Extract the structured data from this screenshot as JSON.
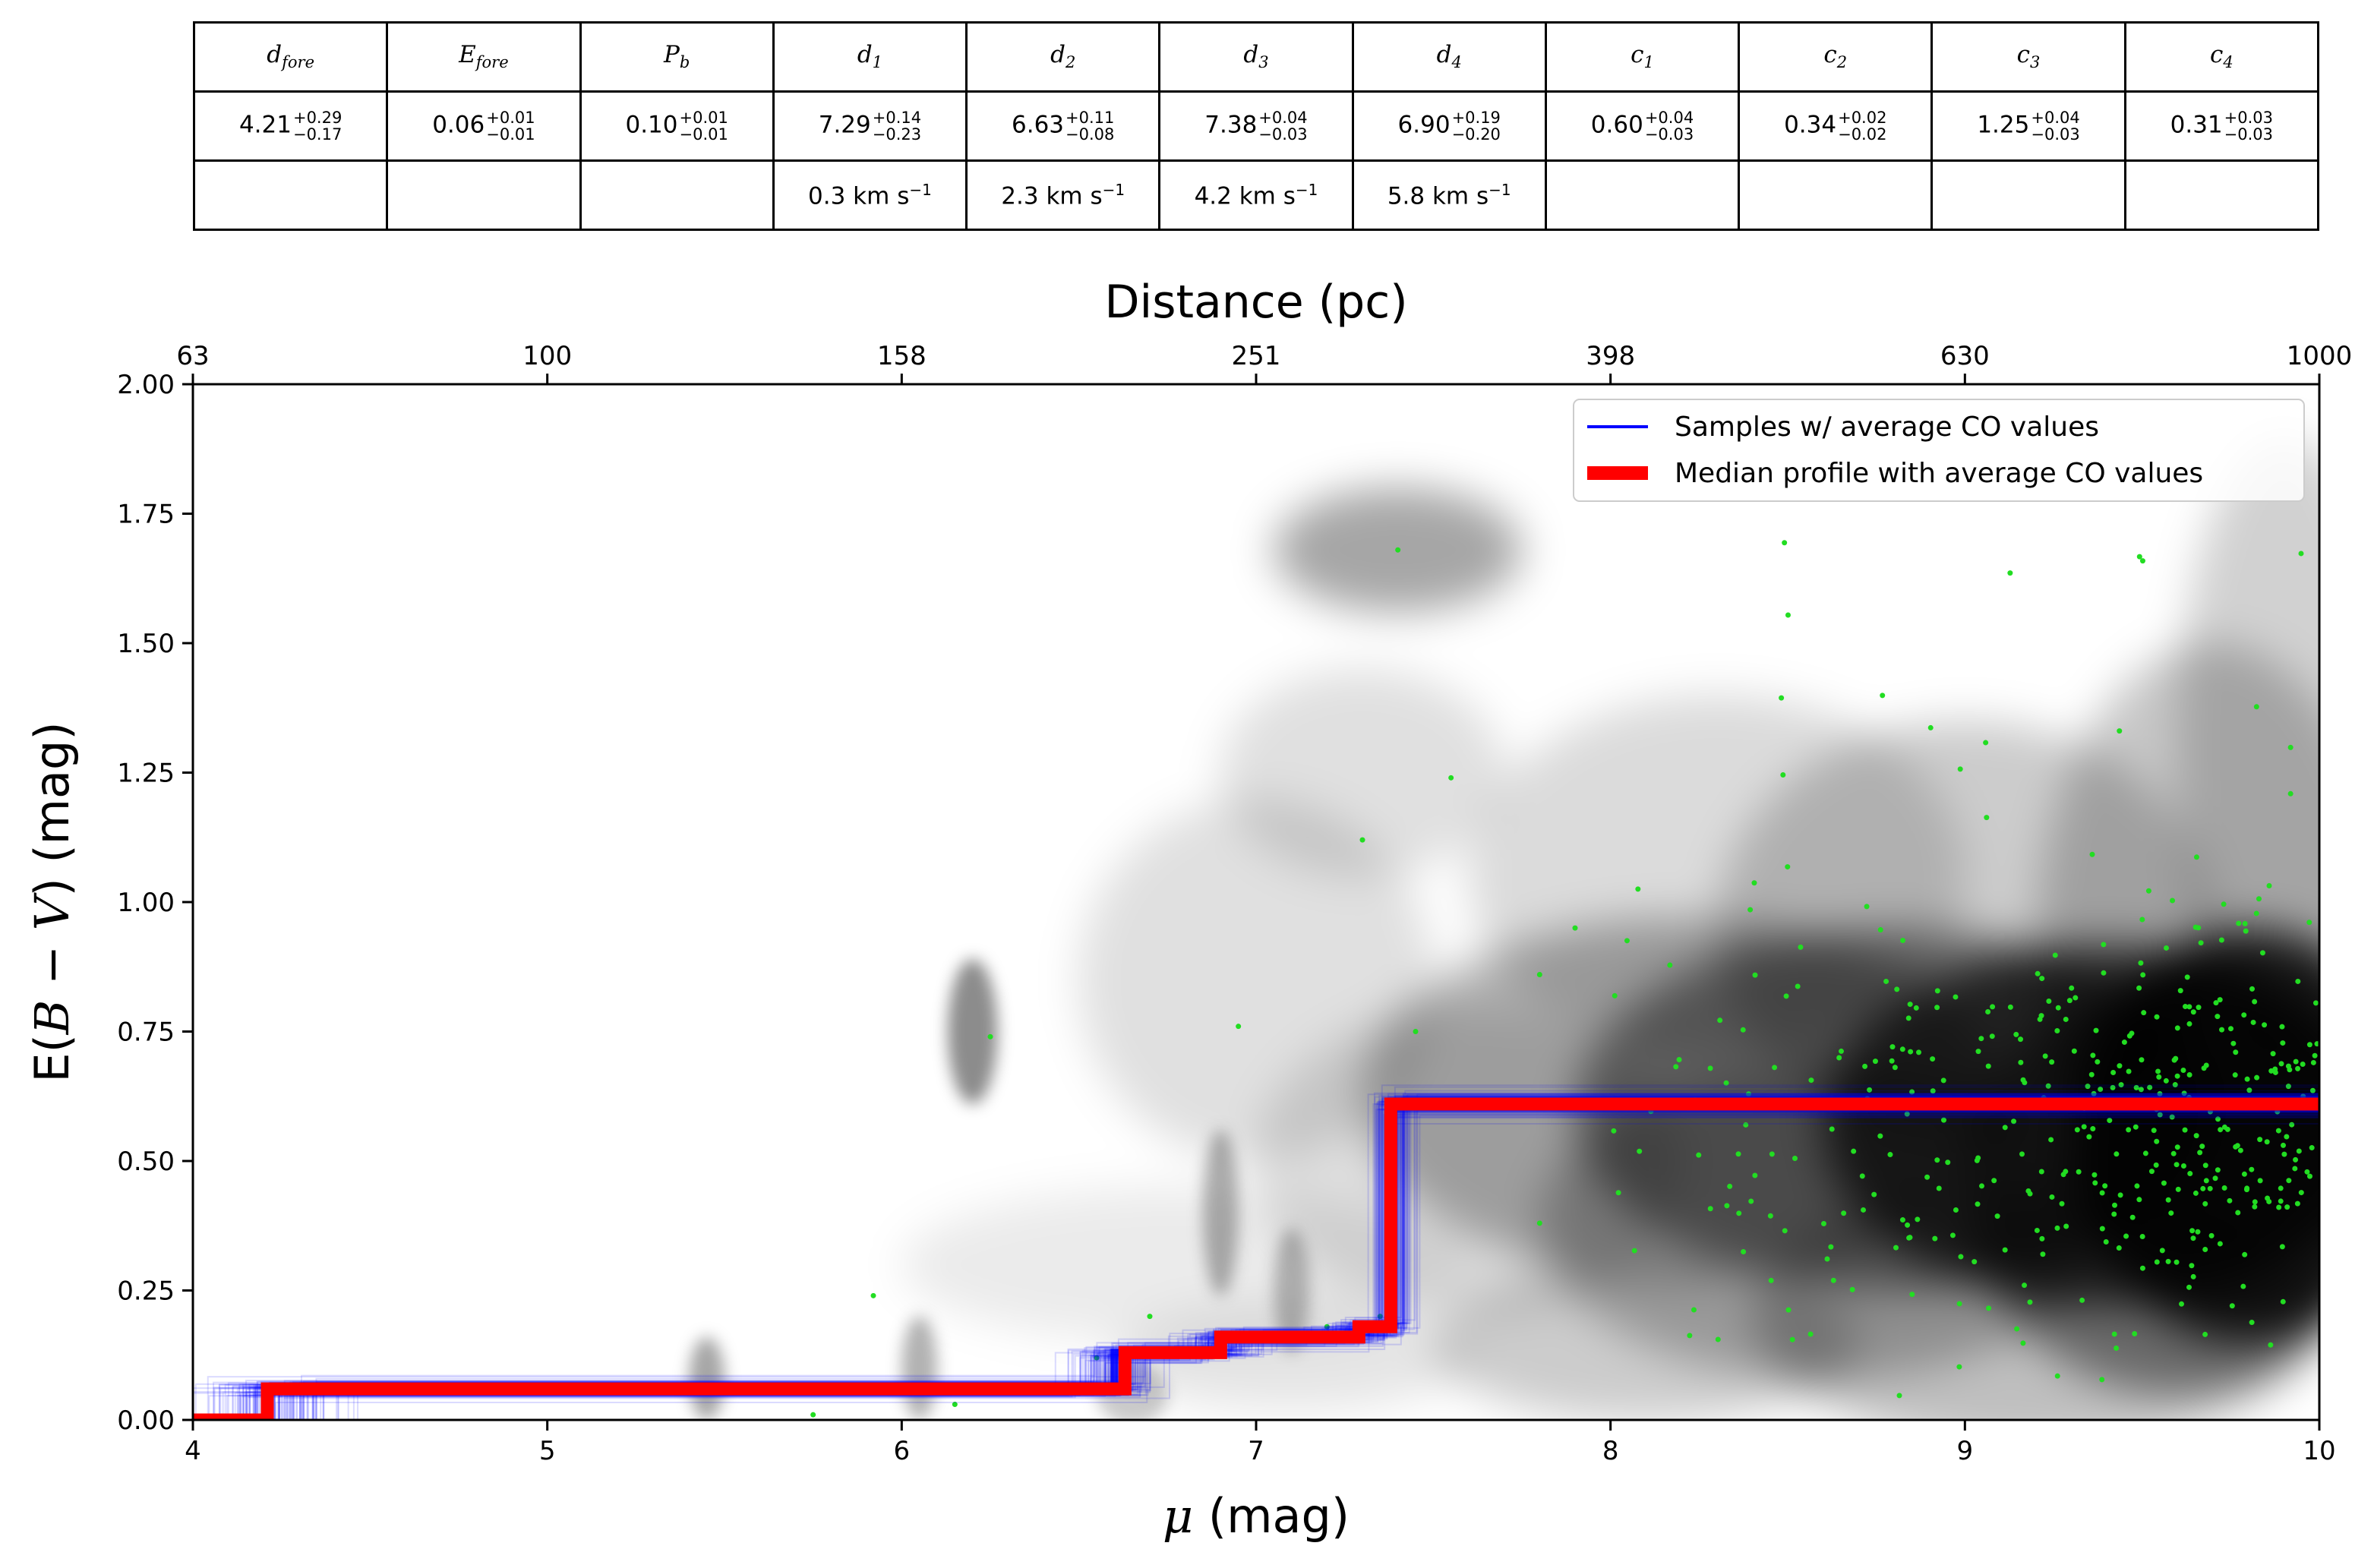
{
  "table": {
    "headers": [
      "d_fore",
      "E_fore",
      "P_b",
      "d_1",
      "d_2",
      "d_3",
      "d_4",
      "c_1",
      "c_2",
      "c_3",
      "c_4"
    ],
    "header_display": [
      {
        "sym": "d",
        "sub": "fore"
      },
      {
        "sym": "E",
        "sub": "fore"
      },
      {
        "sym": "P",
        "sub": "b"
      },
      {
        "sym": "d",
        "sub": "1"
      },
      {
        "sym": "d",
        "sub": "2"
      },
      {
        "sym": "d",
        "sub": "3"
      },
      {
        "sym": "d",
        "sub": "4"
      },
      {
        "sym": "c",
        "sub": "1"
      },
      {
        "sym": "c",
        "sub": "2"
      },
      {
        "sym": "c",
        "sub": "3"
      },
      {
        "sym": "c",
        "sub": "4"
      }
    ],
    "values": [
      {
        "value": "4.21",
        "plus": "+0.29",
        "minus": "−0.17"
      },
      {
        "value": "0.06",
        "plus": "+0.01",
        "minus": "−0.01"
      },
      {
        "value": "0.10",
        "plus": "+0.01",
        "minus": "−0.01"
      },
      {
        "value": "7.29",
        "plus": "+0.14",
        "minus": "−0.23"
      },
      {
        "value": "6.63",
        "plus": "+0.11",
        "minus": "−0.08"
      },
      {
        "value": "7.38",
        "plus": "+0.04",
        "minus": "−0.03"
      },
      {
        "value": "6.90",
        "plus": "+0.19",
        "minus": "−0.20"
      },
      {
        "value": "0.60",
        "plus": "+0.04",
        "minus": "−0.03"
      },
      {
        "value": "0.34",
        "plus": "+0.02",
        "minus": "−0.02"
      },
      {
        "value": "1.25",
        "plus": "+0.04",
        "minus": "−0.03"
      },
      {
        "value": "0.31",
        "plus": "+0.03",
        "minus": "−0.03"
      }
    ],
    "velocities": [
      "",
      "",
      "",
      "0.3 km s",
      "2.3 km s",
      "4.2 km s",
      "5.8 km s",
      "",
      "",
      "",
      ""
    ],
    "velocity_exponent": "−1"
  },
  "chart_data": {
    "type": "line",
    "xlabel": "μ (mag)",
    "ylabel": "E(B − V) (mag)",
    "top_xlabel": "Distance (pc)",
    "xlim": [
      4,
      10
    ],
    "ylim": [
      0,
      2
    ],
    "x_ticks": [
      4,
      5,
      6,
      7,
      8,
      9,
      10
    ],
    "x_tick_labels": [
      "4",
      "5",
      "6",
      "7",
      "8",
      "9",
      "10"
    ],
    "y_ticks": [
      0,
      0.25,
      0.5,
      0.75,
      1.0,
      1.25,
      1.5,
      1.75,
      2.0
    ],
    "y_tick_labels": [
      "0.00",
      "0.25",
      "0.50",
      "0.75",
      "1.00",
      "1.25",
      "1.50",
      "1.75",
      "2.00"
    ],
    "top_x_ticks": [
      4,
      5,
      6,
      7,
      8,
      9,
      10
    ],
    "top_x_tick_labels": [
      "63",
      "100",
      "158",
      "251",
      "398",
      "630",
      "1000"
    ],
    "legend_position": "top-right",
    "series": [
      {
        "name": "Samples  w/ average CO values",
        "color": "#0000ff",
        "kind": "sample-ensemble",
        "x": [
          4.0,
          4.21,
          6.6,
          6.9,
          7.29,
          7.38,
          10.0
        ],
        "y": [
          0.0,
          0.06,
          0.13,
          0.16,
          0.18,
          0.61,
          0.61
        ]
      },
      {
        "name": "Median profile with average CO values",
        "color": "#ff0000",
        "kind": "median-step",
        "x": [
          4.0,
          4.21,
          6.63,
          6.9,
          7.29,
          7.38,
          10.0
        ],
        "y": [
          0.0,
          0.06,
          0.13,
          0.16,
          0.18,
          0.61,
          0.61
        ]
      }
    ],
    "colors": {
      "stars": "#22dd22",
      "density": "#000000"
    }
  }
}
